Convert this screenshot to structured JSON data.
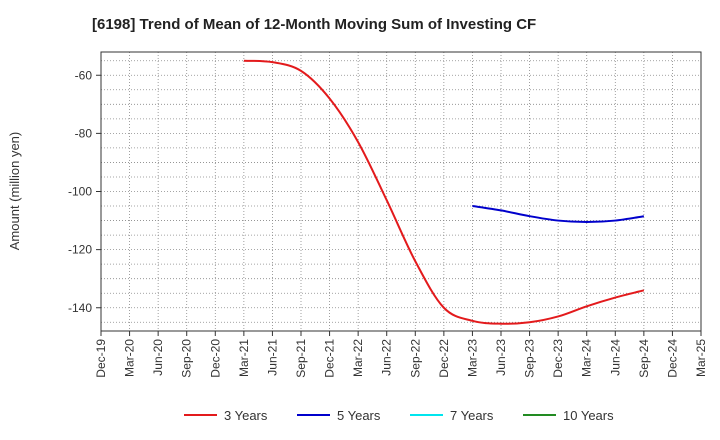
{
  "chart_data": {
    "type": "line",
    "title": "[6198]  Trend of Mean of 12-Month Moving Sum of Investing CF",
    "xlabel": "",
    "ylabel": "Amount (million yen)",
    "ylim": [
      -148,
      -52
    ],
    "yticks": [
      -60,
      -80,
      -100,
      -120,
      -140
    ],
    "categories": [
      "Dec-19",
      "Mar-20",
      "Jun-20",
      "Sep-20",
      "Dec-20",
      "Mar-21",
      "Jun-21",
      "Sep-21",
      "Dec-21",
      "Mar-22",
      "Jun-22",
      "Sep-22",
      "Dec-22",
      "Mar-23",
      "Jun-23",
      "Sep-23",
      "Dec-23",
      "Mar-24",
      "Jun-24",
      "Sep-24",
      "Dec-24",
      "Mar-25"
    ],
    "grid": true,
    "series": [
      {
        "name": "3 Years",
        "color": "#e31a1c",
        "values": [
          null,
          null,
          null,
          null,
          null,
          -55,
          -55.5,
          -58.5,
          -68,
          -83,
          -103,
          -124,
          -140,
          -144.5,
          -145.5,
          -145,
          -143,
          -139.5,
          -136.5,
          -134,
          null,
          null
        ]
      },
      {
        "name": "5 Years",
        "color": "#0000cc",
        "values": [
          null,
          null,
          null,
          null,
          null,
          null,
          null,
          null,
          null,
          null,
          null,
          null,
          null,
          -105,
          -106.5,
          -108.5,
          -110,
          -110.5,
          -110,
          -108.5,
          null,
          null
        ]
      },
      {
        "name": "7 Years",
        "color": "#00e5ee",
        "values": [
          null,
          null,
          null,
          null,
          null,
          null,
          null,
          null,
          null,
          null,
          null,
          null,
          null,
          null,
          null,
          null,
          null,
          null,
          null,
          null,
          null,
          null
        ]
      },
      {
        "name": "10 Years",
        "color": "#228b22",
        "values": [
          null,
          null,
          null,
          null,
          null,
          null,
          null,
          null,
          null,
          null,
          null,
          null,
          null,
          null,
          null,
          null,
          null,
          null,
          null,
          null,
          null,
          null
        ]
      }
    ]
  }
}
